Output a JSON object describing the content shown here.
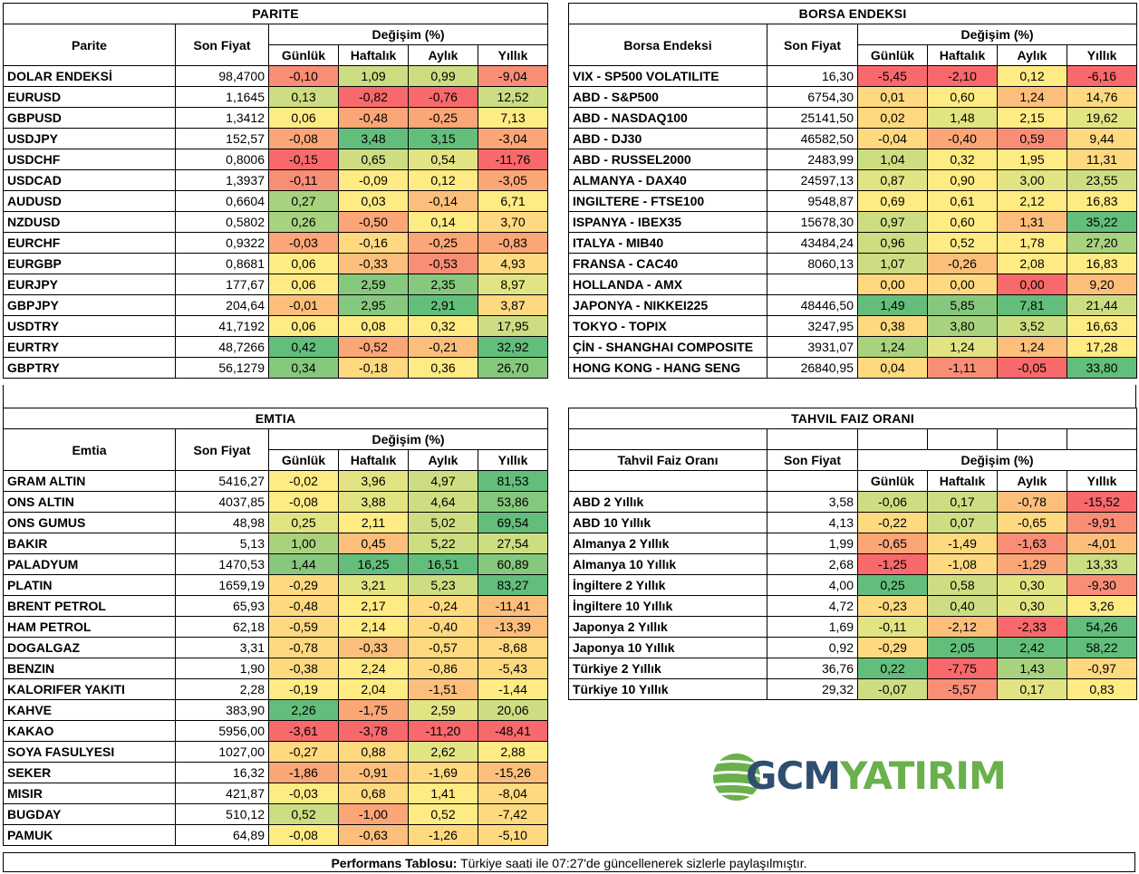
{
  "colors": {
    "r1": "#f8696b",
    "r2": "#f98e76",
    "o1": "#fba677",
    "o2": "#fcbf7b",
    "y1": "#fed980",
    "y2": "#ffeb84",
    "yg": "#e2e383",
    "lg": "#cddd82",
    "g1": "#a9d27f",
    "g2": "#86c87d",
    "g3": "#63be7b",
    "logo_blue": "#2e4f6f",
    "logo_green": "#6ab04c"
  },
  "common": {
    "son_fiyat": "Son Fiyat",
    "degisim": "Değişim (%)",
    "gunluk": "Günlük",
    "haftalik": "Haftalık",
    "aylik": "Aylık",
    "yillik": "Yıllık"
  },
  "parite": {
    "title": "PARITE",
    "name_header": "Parite",
    "rows": [
      {
        "name": "DOLAR ENDEKSİ",
        "price": "98,4700",
        "vals": [
          "-0,10",
          "1,09",
          "0,99",
          "-9,04"
        ],
        "c": [
          "r2",
          "lg",
          "lg",
          "r2"
        ]
      },
      {
        "name": "EURUSD",
        "price": "1,1645",
        "vals": [
          "0,13",
          "-0,82",
          "-0,76",
          "12,52"
        ],
        "c": [
          "lg",
          "r1",
          "r1",
          "lg"
        ]
      },
      {
        "name": "GBPUSD",
        "price": "1,3412",
        "vals": [
          "0,06",
          "-0,48",
          "-0,25",
          "7,13"
        ],
        "c": [
          "y2",
          "o1",
          "o1",
          "y2"
        ]
      },
      {
        "name": "USDJPY",
        "price": "152,57",
        "vals": [
          "-0,08",
          "3,48",
          "3,15",
          "-3,04"
        ],
        "c": [
          "o1",
          "g3",
          "g3",
          "o1"
        ]
      },
      {
        "name": "USDCHF",
        "price": "0,8006",
        "vals": [
          "-0,15",
          "0,65",
          "0,54",
          "-11,76"
        ],
        "c": [
          "r1",
          "lg",
          "yg",
          "r1"
        ]
      },
      {
        "name": "USDCAD",
        "price": "1,3937",
        "vals": [
          "-0,11",
          "-0,09",
          "0,12",
          "-3,05"
        ],
        "c": [
          "r2",
          "y2",
          "y2",
          "o1"
        ]
      },
      {
        "name": "AUDUSD",
        "price": "0,6604",
        "vals": [
          "0,27",
          "0,03",
          "-0,14",
          "6,71"
        ],
        "c": [
          "g1",
          "y2",
          "o2",
          "y2"
        ]
      },
      {
        "name": "NZDUSD",
        "price": "0,5802",
        "vals": [
          "0,26",
          "-0,50",
          "0,14",
          "3,70"
        ],
        "c": [
          "g1",
          "o1",
          "y2",
          "y1"
        ]
      },
      {
        "name": "EURCHF",
        "price": "0,9322",
        "vals": [
          "-0,03",
          "-0,16",
          "-0,25",
          "-0,83"
        ],
        "c": [
          "o1",
          "y1",
          "o1",
          "o1"
        ]
      },
      {
        "name": "EURGBP",
        "price": "0,8681",
        "vals": [
          "0,06",
          "-0,33",
          "-0,53",
          "4,93"
        ],
        "c": [
          "y2",
          "o2",
          "r2",
          "y1"
        ]
      },
      {
        "name": "EURJPY",
        "price": "177,67",
        "vals": [
          "0,06",
          "2,59",
          "2,35",
          "8,97"
        ],
        "c": [
          "y2",
          "g2",
          "g2",
          "yg"
        ]
      },
      {
        "name": "GBPJPY",
        "price": "204,64",
        "vals": [
          "-0,01",
          "2,95",
          "2,91",
          "3,87"
        ],
        "c": [
          "o2",
          "g2",
          "g3",
          "y1"
        ]
      },
      {
        "name": "USDTRY",
        "price": "41,7192",
        "vals": [
          "0,06",
          "0,08",
          "0,32",
          "17,95"
        ],
        "c": [
          "y2",
          "y2",
          "y2",
          "lg"
        ]
      },
      {
        "name": "EURTRY",
        "price": "48,7266",
        "vals": [
          "0,42",
          "-0,52",
          "-0,21",
          "32,92"
        ],
        "c": [
          "g3",
          "o1",
          "o2",
          "g3"
        ]
      },
      {
        "name": "GBPTRY",
        "price": "56,1279",
        "vals": [
          "0,34",
          "-0,18",
          "0,36",
          "26,70"
        ],
        "c": [
          "g2",
          "y1",
          "y2",
          "g2"
        ]
      }
    ]
  },
  "borsa": {
    "title": "BORSA ENDEKSI",
    "name_header": "Borsa Endeksi",
    "rows": [
      {
        "name": "VIX  - SP500 VOLATILITE",
        "price": "16,30",
        "vals": [
          "-5,45",
          "-2,10",
          "0,12",
          "-6,16"
        ],
        "c": [
          "r1",
          "r1",
          "y2",
          "r1"
        ]
      },
      {
        "name": "ABD - S&P500",
        "price": "6754,30",
        "vals": [
          "0,01",
          "0,60",
          "1,24",
          "14,76"
        ],
        "c": [
          "y1",
          "y2",
          "o2",
          "y1"
        ]
      },
      {
        "name": "ABD - NASDAQ100",
        "price": "25141,50",
        "vals": [
          "0,02",
          "1,48",
          "2,15",
          "19,62"
        ],
        "c": [
          "y1",
          "yg",
          "y2",
          "yg"
        ]
      },
      {
        "name": "ABD - DJ30",
        "price": "46582,50",
        "vals": [
          "-0,04",
          "-0,40",
          "0,59",
          "9,44"
        ],
        "c": [
          "y1",
          "o1",
          "r2",
          "y1"
        ]
      },
      {
        "name": "ABD - RUSSEL2000",
        "price": "2483,99",
        "vals": [
          "1,04",
          "0,32",
          "1,95",
          "11,31"
        ],
        "c": [
          "lg",
          "y2",
          "y2",
          "y1"
        ]
      },
      {
        "name": "ALMANYA - DAX40",
        "price": "24597,13",
        "vals": [
          "0,87",
          "0,90",
          "3,00",
          "23,55"
        ],
        "c": [
          "yg",
          "y2",
          "yg",
          "lg"
        ]
      },
      {
        "name": "INGILTERE - FTSE100",
        "price": "9548,87",
        "vals": [
          "0,69",
          "0,61",
          "2,12",
          "16,83"
        ],
        "c": [
          "y2",
          "y2",
          "y2",
          "y2"
        ]
      },
      {
        "name": "ISPANYA - IBEX35",
        "price": "15678,30",
        "vals": [
          "0,97",
          "0,60",
          "1,31",
          "35,22"
        ],
        "c": [
          "lg",
          "y2",
          "o2",
          "g3"
        ]
      },
      {
        "name": "ITALYA - MIB40",
        "price": "43484,24",
        "vals": [
          "0,96",
          "0,52",
          "1,78",
          "27,20"
        ],
        "c": [
          "lg",
          "y2",
          "y2",
          "g1"
        ]
      },
      {
        "name": "FRANSA - CAC40",
        "price": "8060,13",
        "vals": [
          "1,07",
          "-0,26",
          "2,08",
          "16,83"
        ],
        "c": [
          "lg",
          "o2",
          "y2",
          "y2"
        ]
      },
      {
        "name": "HOLLANDA - AMX",
        "price": "",
        "vals": [
          "0,00",
          "0,00",
          "0,00",
          "9,20"
        ],
        "c": [
          "y1",
          "y1",
          "r1",
          "o2"
        ]
      },
      {
        "name": "JAPONYA - NIKKEI225",
        "price": "48446,50",
        "vals": [
          "1,49",
          "5,85",
          "7,81",
          "21,44"
        ],
        "c": [
          "g3",
          "g2",
          "g3",
          "lg"
        ]
      },
      {
        "name": "TOKYO - TOPIX",
        "price": "3247,95",
        "vals": [
          "0,38",
          "3,80",
          "3,52",
          "16,63"
        ],
        "c": [
          "y1",
          "g1",
          "lg",
          "y2"
        ]
      },
      {
        "name": "ÇİN - SHANGHAI COMPOSITE",
        "price": "3931,07",
        "vals": [
          "1,24",
          "1,24",
          "1,24",
          "17,28"
        ],
        "c": [
          "g1",
          "yg",
          "o2",
          "y2"
        ]
      },
      {
        "name": "HONG KONG - HANG SENG",
        "price": "26840,95",
        "vals": [
          "0,04",
          "-1,11",
          "-0,05",
          "33,80"
        ],
        "c": [
          "y1",
          "r2",
          "r1",
          "g3"
        ]
      }
    ]
  },
  "emtia": {
    "title": "EMTIA",
    "name_header": "Emtia",
    "rows": [
      {
        "name": "GRAM ALTIN",
        "price": "5416,27",
        "vals": [
          "-0,02",
          "3,96",
          "4,97",
          "81,53"
        ],
        "c": [
          "y2",
          "yg",
          "lg",
          "g3"
        ]
      },
      {
        "name": "ONS ALTIN",
        "price": "4037,85",
        "vals": [
          "-0,08",
          "3,88",
          "4,64",
          "53,86"
        ],
        "c": [
          "y2",
          "yg",
          "lg",
          "g2"
        ]
      },
      {
        "name": "ONS GUMUS",
        "price": "48,98",
        "vals": [
          "0,25",
          "2,11",
          "5,02",
          "69,54"
        ],
        "c": [
          "yg",
          "y2",
          "lg",
          "g3"
        ]
      },
      {
        "name": "BAKIR",
        "price": "5,13",
        "vals": [
          "1,00",
          "0,45",
          "5,22",
          "27,54"
        ],
        "c": [
          "g1",
          "o2",
          "lg",
          "lg"
        ]
      },
      {
        "name": "PALADYUM",
        "price": "1470,53",
        "vals": [
          "1,44",
          "16,25",
          "16,51",
          "60,89"
        ],
        "c": [
          "g2",
          "g3",
          "g3",
          "g2"
        ]
      },
      {
        "name": "PLATIN",
        "price": "1659,19",
        "vals": [
          "-0,29",
          "3,21",
          "5,23",
          "83,27"
        ],
        "c": [
          "y1",
          "yg",
          "lg",
          "g3"
        ]
      },
      {
        "name": "BRENT PETROL",
        "price": "65,93",
        "vals": [
          "-0,48",
          "2,17",
          "-0,24",
          "-11,41"
        ],
        "c": [
          "y1",
          "y2",
          "y1",
          "o2"
        ]
      },
      {
        "name": "HAM PETROL",
        "price": "62,18",
        "vals": [
          "-0,59",
          "2,14",
          "-0,40",
          "-13,39"
        ],
        "c": [
          "y1",
          "y2",
          "y1",
          "o2"
        ]
      },
      {
        "name": "DOGALGAZ",
        "price": "3,31",
        "vals": [
          "-0,78",
          "-0,33",
          "-0,57",
          "-8,68"
        ],
        "c": [
          "y1",
          "o2",
          "y1",
          "y1"
        ]
      },
      {
        "name": "BENZIN",
        "price": "1,90",
        "vals": [
          "-0,38",
          "2,24",
          "-0,86",
          "-5,43"
        ],
        "c": [
          "y1",
          "y2",
          "y1",
          "y1"
        ]
      },
      {
        "name": "KALORIFER YAKITI",
        "price": "2,28",
        "vals": [
          "-0,19",
          "2,04",
          "-1,51",
          "-1,44"
        ],
        "c": [
          "y2",
          "y2",
          "o2",
          "y2"
        ]
      },
      {
        "name": "KAHVE",
        "price": "383,90",
        "vals": [
          "2,26",
          "-1,75",
          "2,59",
          "20,06"
        ],
        "c": [
          "g3",
          "o1",
          "yg",
          "lg"
        ]
      },
      {
        "name": "KAKAO",
        "price": "5956,00",
        "vals": [
          "-3,61",
          "-3,78",
          "-11,20",
          "-48,41"
        ],
        "c": [
          "r1",
          "r1",
          "r1",
          "r1"
        ]
      },
      {
        "name": "SOYA FASULYESI",
        "price": "1027,00",
        "vals": [
          "-0,27",
          "0,88",
          "2,62",
          "2,88"
        ],
        "c": [
          "y1",
          "y1",
          "yg",
          "y2"
        ]
      },
      {
        "name": "SEKER",
        "price": "16,32",
        "vals": [
          "-1,86",
          "-0,91",
          "-1,69",
          "-15,26"
        ],
        "c": [
          "o1",
          "o2",
          "y1",
          "o2"
        ]
      },
      {
        "name": "MISIR",
        "price": "421,87",
        "vals": [
          "-0,03",
          "0,68",
          "1,41",
          "-8,04"
        ],
        "c": [
          "y2",
          "y1",
          "y2",
          "y1"
        ]
      },
      {
        "name": "BUGDAY",
        "price": "510,12",
        "vals": [
          "0,52",
          "-1,00",
          "0,52",
          "-7,42"
        ],
        "c": [
          "lg",
          "o1",
          "y2",
          "y1"
        ]
      },
      {
        "name": "PAMUK",
        "price": "64,89",
        "vals": [
          "-0,08",
          "-0,63",
          "-1,26",
          "-5,10"
        ],
        "c": [
          "y2",
          "o2",
          "y1",
          "y1"
        ]
      }
    ]
  },
  "tahvil": {
    "title": "TAHVIL FAIZ ORANI",
    "name_header": "Tahvil Faiz Oranı",
    "rows": [
      {
        "name": "ABD 2 Yıllık",
        "price": "3,58",
        "vals": [
          "-0,06",
          "0,17",
          "-0,78",
          "-15,52"
        ],
        "c": [
          "lg",
          "lg",
          "o2",
          "r1"
        ]
      },
      {
        "name": "ABD 10 Yıllık",
        "price": "4,13",
        "vals": [
          "-0,22",
          "0,07",
          "-0,65",
          "-9,91"
        ],
        "c": [
          "y1",
          "lg",
          "y1",
          "r2"
        ]
      },
      {
        "name": "Almanya 2 Yıllık",
        "price": "1,99",
        "vals": [
          "-0,65",
          "-1,49",
          "-1,63",
          "-4,01"
        ],
        "c": [
          "o1",
          "y1",
          "r2",
          "o2"
        ]
      },
      {
        "name": "Almanya 10 Yıllık",
        "price": "2,68",
        "vals": [
          "-1,25",
          "-1,08",
          "-1,29",
          "13,33"
        ],
        "c": [
          "r1",
          "y1",
          "o1",
          "lg"
        ]
      },
      {
        "name": "İngiltere 2 Yıllık",
        "price": "4,00",
        "vals": [
          "0,25",
          "0,58",
          "0,30",
          "-9,30"
        ],
        "c": [
          "g3",
          "lg",
          "yg",
          "r2"
        ]
      },
      {
        "name": "İngiltere 10 Yıllık",
        "price": "4,72",
        "vals": [
          "-0,23",
          "0,40",
          "0,30",
          "3,26"
        ],
        "c": [
          "y1",
          "lg",
          "yg",
          "y2"
        ]
      },
      {
        "name": "Japonya 2 Yıllık",
        "price": "1,69",
        "vals": [
          "-0,11",
          "-2,12",
          "-2,33",
          "54,26"
        ],
        "c": [
          "yg",
          "o2",
          "r1",
          "g3"
        ]
      },
      {
        "name": "Japonya 10 Yıllık",
        "price": "0,92",
        "vals": [
          "-0,29",
          "2,05",
          "2,42",
          "58,22"
        ],
        "c": [
          "y1",
          "g3",
          "g3",
          "g3"
        ]
      },
      {
        "name": "Türkiye 2 Yıllık",
        "price": "36,76",
        "vals": [
          "0,22",
          "-7,75",
          "1,43",
          "-0,97"
        ],
        "c": [
          "g3",
          "r1",
          "g1",
          "y1"
        ]
      },
      {
        "name": "Türkiye 10 Yıllık",
        "price": "29,32",
        "vals": [
          "-0,07",
          "-5,57",
          "0,17",
          "0,83"
        ],
        "c": [
          "lg",
          "r2",
          "yg",
          "y2"
        ]
      }
    ]
  },
  "logo": {
    "part1": "GCM",
    "part2": "YATIRIM"
  },
  "footer": {
    "bold": "Performans Tablosu:",
    "text": " Türkiye saati ile 07:27'de güncellenerek sizlerle paylaşılmıştır."
  }
}
